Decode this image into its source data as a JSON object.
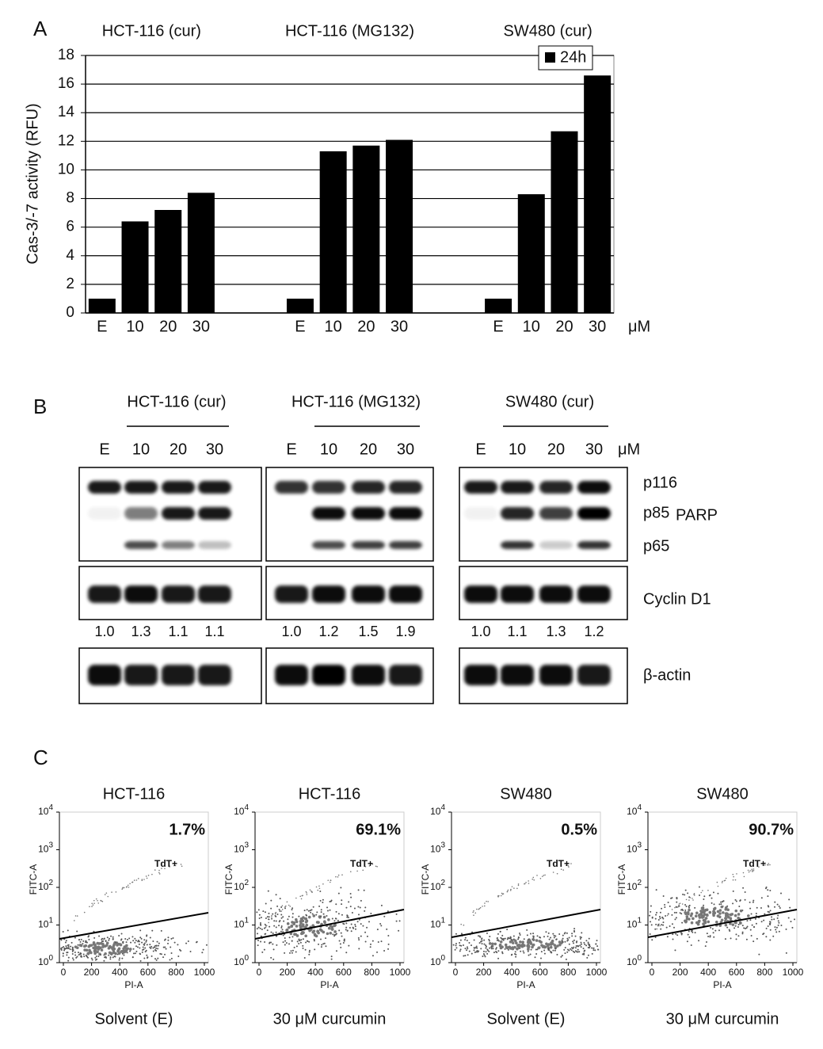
{
  "chart_data": {
    "type": "bar",
    "panel": "A",
    "ylabel": "Cas-3/-7 activity (RFU)",
    "groups": [
      "HCT-116 (cur)",
      "HCT-116 (MG132)",
      "SW480 (cur)"
    ],
    "categories": [
      "E",
      "10",
      "20",
      "30",
      "E",
      "10",
      "20",
      "30",
      "E",
      "10",
      "20",
      "30"
    ],
    "unit": "μM",
    "series": [
      {
        "name": "24h",
        "color": "#000000",
        "values": [
          1.0,
          6.4,
          7.2,
          8.4,
          1.0,
          11.3,
          11.7,
          12.1,
          1.0,
          8.3,
          12.7,
          16.6
        ]
      }
    ],
    "ylim": [
      0,
      18
    ],
    "yticks": [
      0,
      2,
      4,
      6,
      8,
      10,
      12,
      14,
      16,
      18
    ],
    "grid": true,
    "legend": "top-right"
  },
  "blots": {
    "panel": "B",
    "groups": [
      {
        "title": "HCT-116 (cur)",
        "lanes": [
          "E",
          "10",
          "20",
          "30"
        ],
        "ratios": [
          "1.0",
          "1.3",
          "1.1",
          "1.1"
        ]
      },
      {
        "title": "HCT-116 (MG132)",
        "lanes": [
          "E",
          "10",
          "20",
          "30"
        ],
        "ratios": [
          "1.0",
          "1.2",
          "1.5",
          "1.9"
        ]
      },
      {
        "title": "SW480 (cur)",
        "lanes": [
          "E",
          "10",
          "20",
          "30"
        ],
        "ratios": [
          "1.0",
          "1.1",
          "1.3",
          "1.2"
        ]
      }
    ],
    "unit": "μM",
    "bands": [
      "p116",
      "p85",
      "p65",
      "Cyclin D1",
      "β-actin"
    ],
    "bracket": "PARP"
  },
  "flow": {
    "panel": "C",
    "x_title": "PI-A",
    "y_title": "FITC-A",
    "gate": "TdT+",
    "xticks": [
      "0",
      "200",
      "400",
      "600",
      "800",
      "1000"
    ],
    "yticks": [
      {
        "base": "10",
        "exp": "0"
      },
      {
        "base": "10",
        "exp": "1"
      },
      {
        "base": "10",
        "exp": "2"
      },
      {
        "base": "10",
        "exp": "3"
      },
      {
        "base": "10",
        "exp": "4"
      }
    ],
    "plots": [
      {
        "title": "HCT-116",
        "percent": "1.7%",
        "caption": "Solvent (E)"
      },
      {
        "title": "HCT-116",
        "percent": "69.1%",
        "caption": "30 μM curcumin"
      },
      {
        "title": "SW480",
        "percent": "0.5%",
        "caption": "Solvent (E)"
      },
      {
        "title": "SW480",
        "percent": "90.7%",
        "caption": "30 μM curcumin"
      }
    ]
  }
}
